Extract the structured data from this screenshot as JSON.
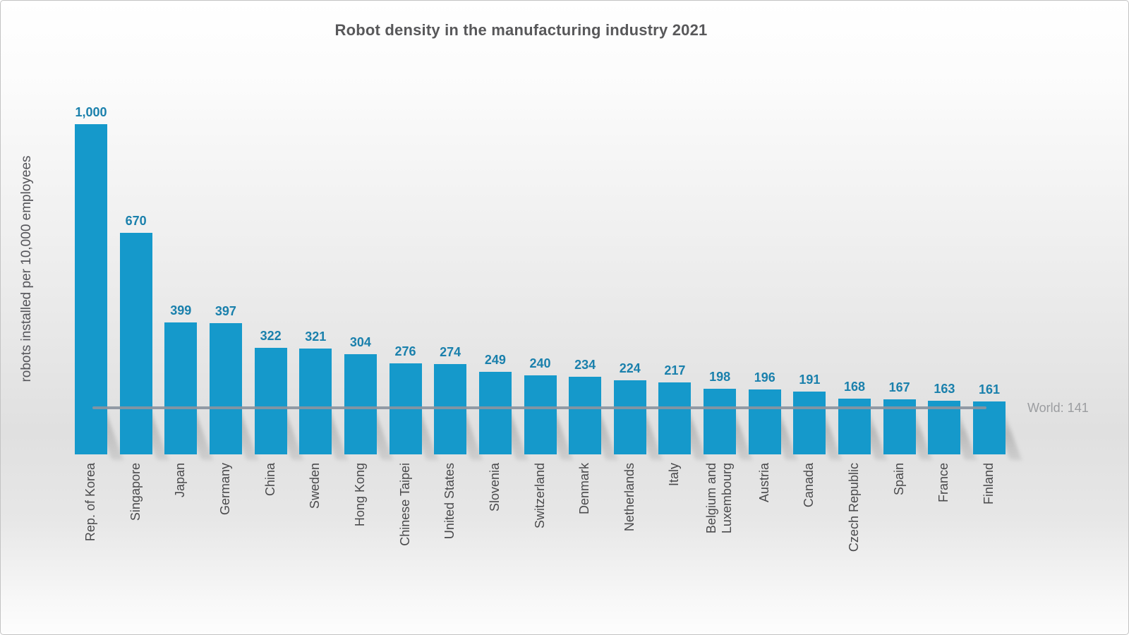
{
  "chart_data": {
    "type": "bar",
    "title": "Robot density in the manufacturing industry 2021",
    "ylabel": "robots installed per 10,000 employees",
    "xlabel": "",
    "categories": [
      "Rep. of Korea",
      "Singapore",
      "Japan",
      "Germany",
      "China",
      "Sweden",
      "Hong Kong",
      "Chinese Taipei",
      "United States",
      "Slovenia",
      "Switzerland",
      "Denmark",
      "Netherlands",
      "Italy",
      "Belgium and Luxembourg",
      "Austria",
      "Canada",
      "Czech Republic",
      "Spain",
      "France",
      "Finland"
    ],
    "category_labels": [
      "Rep. of Korea",
      "Singapore",
      "Japan",
      "Germany",
      "China",
      "Sweden",
      "Hong Kong",
      "Chinese Taipei",
      "United States",
      "Slovenia",
      "Switzerland",
      "Denmark",
      "Netherlands",
      "Italy",
      "Belgium and\nLuxembourg",
      "Austria",
      "Canada",
      "Czech Republic",
      "Spain",
      "France",
      "Finland"
    ],
    "values": [
      1000,
      670,
      399,
      397,
      322,
      321,
      304,
      276,
      274,
      249,
      240,
      234,
      224,
      217,
      198,
      196,
      191,
      168,
      167,
      163,
      161
    ],
    "value_labels": [
      "1,000",
      "670",
      "399",
      "397",
      "322",
      "321",
      "304",
      "276",
      "274",
      "249",
      "240",
      "234",
      "224",
      "217",
      "198",
      "196",
      "191",
      "168",
      "167",
      "163",
      "161"
    ],
    "benchmark": {
      "label": "World: 141",
      "value": 141
    },
    "ylim": [
      0,
      1070
    ],
    "grid": false,
    "legend": null,
    "colors": {
      "bar": "#1599cb",
      "value_label": "#1a80ac",
      "title": "#58585a",
      "category_label": "#4a4a4c",
      "benchmark_line": "#8a94a0",
      "benchmark_label": "#9b9da0"
    }
  }
}
